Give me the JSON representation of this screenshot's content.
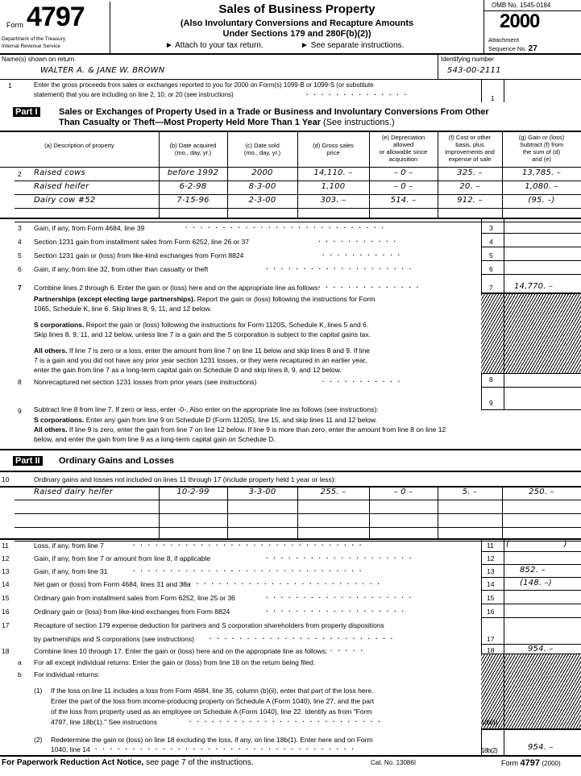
{
  "header": {
    "form_label": "Form",
    "form_number": "4797",
    "dept": "Department of the Treasury",
    "irs": "Internal Revenue Service",
    "title": "Sales of Business Property",
    "subtitle1": "(Also Involuntary Conversions and Recapture Amounts",
    "subtitle2": "Under Sections 179 and 280F(b)(2))",
    "attach": "► Attach to your tax return.",
    "see_instr": "► See separate instructions.",
    "omb": "OMB No. 1545-0184",
    "year": "2000",
    "attachment": "Attachment",
    "sequence_label": "Sequence No.",
    "sequence_no": "27"
  },
  "taxpayer": {
    "name_label": "Name(s) shown on return",
    "name": "WALTER A. & JANE W. BROWN",
    "id_label": "Identifying number",
    "id": "543-00-2111"
  },
  "line1": {
    "num": "1",
    "text1": "Enter the gross proceeds from sales or exchanges reported to you for 2000 on Form(s) 1099-B or 1099-S (or substitute",
    "text2": "statement) that you are including on line 2, 10, or 20 (see instructions)",
    "box": "1",
    "amount": ""
  },
  "part1": {
    "label": "Part I",
    "title1": "Sales or Exchanges of Property Used in a Trade or Business and Involuntary Conversions From Other",
    "title2": "Than Casualty or Theft—Most Property Held More Than 1 Year",
    "title_note": "(See instructions.)",
    "columns": [
      "(a) Description of property",
      "(b) Date acquired\n(mo., day, yr.)",
      "(c) Date sold\n(mo., day, yr.)",
      "(d) Gross sales\nprice",
      "(e) Depreciation\nallowed\nor allowable since\nacquisition",
      "(f) Cost or other\nbasis, plus\nimprovements and\nexpense of sale",
      "(g) Gain or (loss)\nSubtract (f) from\nthe sum of (d)\nand (e)"
    ],
    "line2_num": "2",
    "rows": [
      [
        "Raised cows",
        "before 1992",
        "2000",
        "14,110. –",
        "– 0 –",
        "325. –",
        "13,785. –"
      ],
      [
        "Raised heifer",
        "6-2-98",
        "8-3-00",
        "1,100",
        "– 0 –",
        "20. –",
        "1,080. –"
      ],
      [
        "Dairy cow #52",
        "7-15-96",
        "2-3-00",
        "303. –",
        "514. –",
        "912. –",
        "(95. –)"
      ],
      [
        "",
        "",
        "",
        "",
        "",
        "",
        ""
      ]
    ]
  },
  "lines_a": [
    {
      "num": "3",
      "text": "Gain, if any, from Form 4684, line 39",
      "box": "3",
      "amount": ""
    },
    {
      "num": "4",
      "text": "Section 1231 gain from installment sales from Form 6252, line 26 or 37",
      "box": "4",
      "amount": ""
    },
    {
      "num": "5",
      "text": "Section 1231 gain or (loss) from like-kind exchanges from Form 8824",
      "box": "5",
      "amount": ""
    },
    {
      "num": "6",
      "text": "Gain, if any, from line 32, from other than casualty or theft",
      "box": "6",
      "amount": ""
    },
    {
      "num": "7",
      "text": "Combine lines 2 through 6. Enter the gain or (loss) here and on the appropriate line as follows:",
      "box": "7",
      "amount": "14,770. –"
    }
  ],
  "line7_notes": [
    {
      "head": "Partnerships (except electing large partnerships).",
      "l1": " Report the gain or (loss) following the instructions for Form",
      "l2": "1065, Schedule K, line 6. Skip lines 8, 9, 11, and 12 below."
    },
    {
      "head": "S corporations.",
      "l1": " Report the gain or (loss) following the instructions for Form 1120S, Schedule K, lines 5 and 6.",
      "l2": "Skip lines 8, 9, 11, and 12 below, unless line 7 is a gain and the S corporation is subject to the capital gains tax."
    },
    {
      "head": "All others.",
      "l1": " If line 7 is zero or a loss, enter the amount from line 7 on line 11 below and skip lines 8 and 9. If line",
      "l2": "7 is a gain and you did not have any prior year section 1231 losses, or they were recaptured in an earlier year,",
      "l3": "enter the gain from line 7 as a long-term capital gain on Schedule D and skip lines 8, 9, and 12 below."
    }
  ],
  "line8": {
    "num": "8",
    "text": "Nonrecaptured net section 1231 losses from prior years (see instructions)",
    "box": "8",
    "amount": ""
  },
  "line9": {
    "num": "9",
    "box": "9",
    "amount": "",
    "text": "Subtract line 8 from line 7. If zero or less, enter -0-. Also enter on the appropriate line as follows (see instructions):",
    "s_head": "S corporations.",
    "s_text": " Enter any gain from line 9 on Schedule D (Form 1120S), line 15, and skip lines 11 and 12 below.",
    "o_head": "All others.",
    "o_text1": " If line 9 is zero, enter the gain from line 7 on line 12 below. If line 9 is more than zero, enter the amount from line 8 on line 12",
    "o_text2": "below, and enter the gain from line 9 as a long-term capital gain on Schedule D."
  },
  "part2": {
    "label": "Part II",
    "title": "Ordinary Gains and Losses",
    "line10_num": "10",
    "line10_text": "Ordinary gains and losses not included on lines 11 through 17 (include property held 1 year or less):",
    "rows": [
      [
        "Raised dairy heifer",
        "10-2-99",
        "3-3-00",
        "255. –",
        "– 0 –",
        "5. –",
        "250. –"
      ],
      [
        "",
        "",
        "",
        "",
        "",
        "",
        ""
      ],
      [
        "",
        "",
        "",
        "",
        "",
        "",
        ""
      ],
      [
        "",
        "",
        "",
        "",
        "",
        "",
        ""
      ]
    ]
  },
  "lines_b": [
    {
      "num": "11",
      "text": "Loss, if any, from line 7",
      "box": "11",
      "amount": "(                    )"
    },
    {
      "num": "12",
      "text": "Gain, if any, from line 7 or amount from line 8, if applicable",
      "box": "12",
      "amount": ""
    },
    {
      "num": "13",
      "text": "Gain, if any, from line 31",
      "box": "13",
      "amount": "852. –"
    },
    {
      "num": "14",
      "text": "Net gain or (loss) from Form 4684, lines 31 and 38a",
      "box": "14",
      "amount": "(148. –)"
    },
    {
      "num": "15",
      "text": "Ordinary gain from installment sales from Form 6252, line 25 or 36",
      "box": "15",
      "amount": ""
    },
    {
      "num": "16",
      "text": "Ordinary gain or (loss) from like-kind exchanges from Form 8824",
      "box": "16",
      "amount": ""
    }
  ],
  "line17": {
    "num": "17",
    "text1": "Recapture of section 179 expense deduction for partners and S corporation shareholders from property dispositions",
    "text2": "by partnerships and S corporations (see instructions)",
    "box": "17",
    "amount": ""
  },
  "line18": {
    "num": "18",
    "text": "Combine lines 10 through 17. Enter the gain or (loss) here and on the appropriate line as follows:",
    "box": "18",
    "amount": "954. –"
  },
  "line18a": {
    "num": "a",
    "text": "For all except individual returns: Enter the gain or (loss) from line 18 on the return being filed."
  },
  "line18b": {
    "num": "b",
    "text": "For individual returns:"
  },
  "line18b1": {
    "num": "(1)",
    "box": "18b(1)",
    "amount": "",
    "t1": "If the loss on line 11 includes a loss from Form 4684, line 35, column (b)(ii), enter that part of the loss here.",
    "t2": "Enter the part of the loss from income-producing property on Schedule A (Form 1040), line 27, and the part",
    "t3": "of the loss from property used as an employee on Schedule A (Form 1040), line 22. Identify as from \"Form",
    "t4": "4797, line 18b(1).\" See instructions"
  },
  "line18b2": {
    "num": "(2)",
    "box": "18b(2)",
    "amount": "954. –",
    "t1": "Redetermine the gain or (loss) on line 18 excluding the loss, if any, on line 18b(1). Enter here and on Form",
    "t2": "1040, line 14"
  },
  "footer": {
    "pra_bold": "For Paperwork Reduction Act Notice,",
    "pra": " see page 7 of the instructions.",
    "cat": "Cat. No. 13086I",
    "form_label": "Form",
    "form_number": "4797",
    "year": "(2000)"
  }
}
